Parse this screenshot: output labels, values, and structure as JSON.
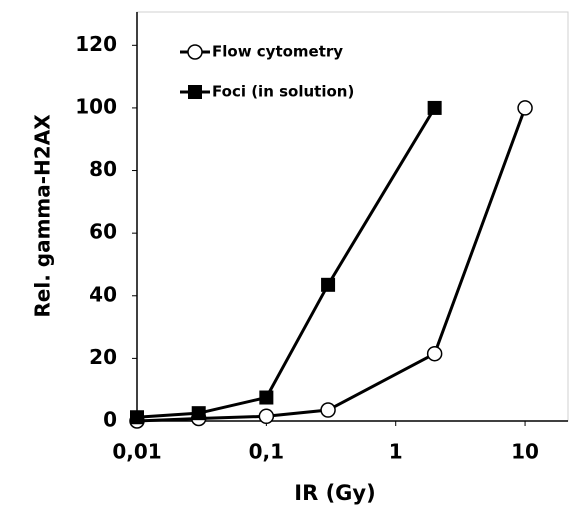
{
  "chart_data": {
    "type": "line",
    "x_label": "IR (Gy)",
    "y_label": "Rel. gamma-H2AX",
    "x_scale": "log",
    "xlim": [
      0.01,
      20
    ],
    "ylim": [
      0,
      130
    ],
    "xticks": [
      {
        "value": 0.01,
        "label": "0,01"
      },
      {
        "value": 0.1,
        "label": "0,1"
      },
      1,
      10
    ],
    "yticks": [
      0,
      20,
      40,
      60,
      80,
      100,
      120
    ],
    "legend": "upper left",
    "series": [
      {
        "name": "Flow cytometry",
        "color": "#000000",
        "marker": "open-circle",
        "x": [
          0.01,
          0.03,
          0.1,
          0.3,
          2,
          10
        ],
        "values": [
          0,
          0.8,
          1.5,
          3.5,
          21.5,
          100
        ]
      },
      {
        "name": "Foci (in solution)",
        "color": "#000000",
        "marker": "filled-square",
        "x": [
          0.01,
          0.03,
          0.1,
          0.3,
          2
        ],
        "values": [
          1.2,
          2.5,
          7.5,
          43.5,
          100
        ]
      }
    ]
  }
}
